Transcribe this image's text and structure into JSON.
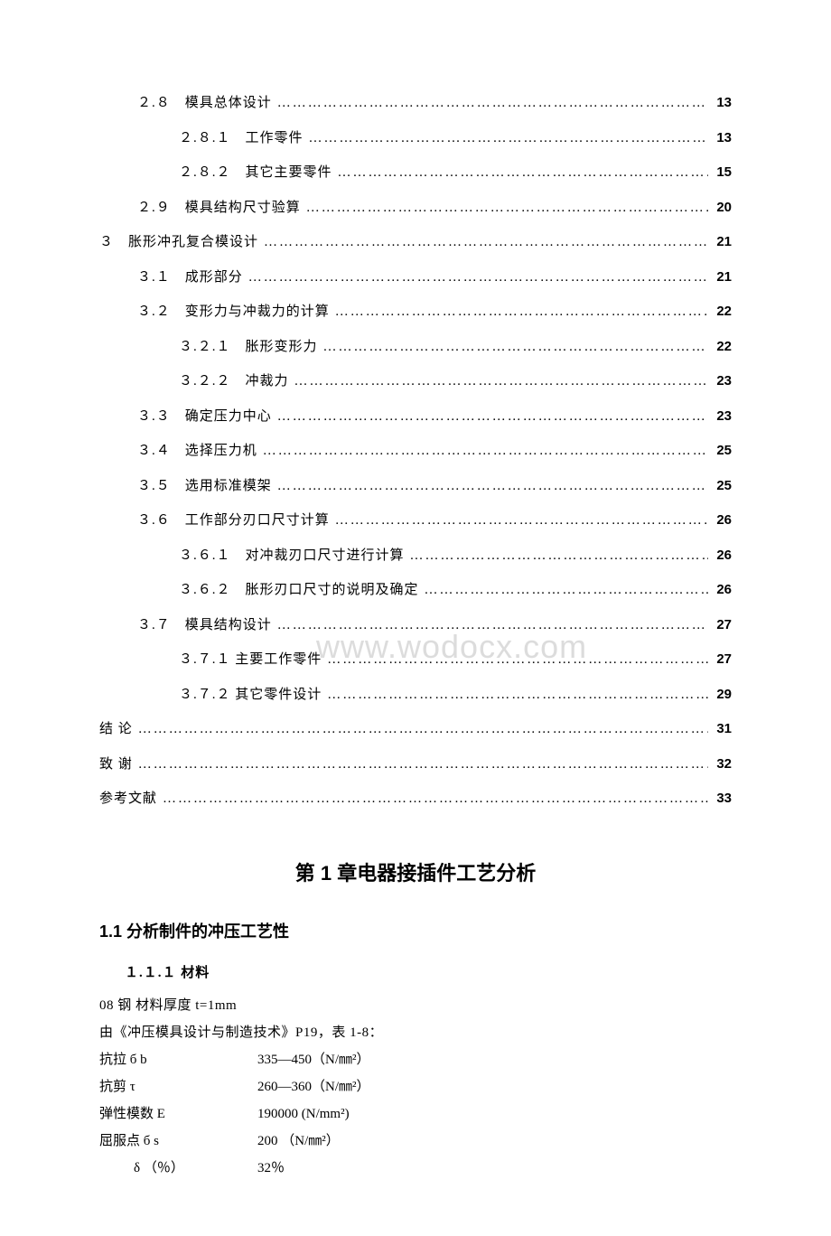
{
  "watermark": "www.wodocx.com",
  "toc": [
    {
      "indent": 1,
      "label": "２.８　模具总体设计",
      "page": "13"
    },
    {
      "indent": 2,
      "label": "２.８.１　工作零件",
      "page": "13"
    },
    {
      "indent": 2,
      "label": "２.８.２　其它主要零件",
      "page": "15"
    },
    {
      "indent": 1,
      "label": "２.９　模具结构尺寸验算",
      "page": "20"
    },
    {
      "indent": 0,
      "label": "３　胀形冲孔复合模设计",
      "page": "21"
    },
    {
      "indent": 1,
      "label": "３.１　成形部分",
      "page": "21"
    },
    {
      "indent": 1,
      "label": "３.２　变形力与冲裁力的计算",
      "page": "22"
    },
    {
      "indent": 2,
      "label": "３.２.１　胀形变形力",
      "page": "22"
    },
    {
      "indent": 2,
      "label": "３.２.２　冲裁力",
      "page": "23"
    },
    {
      "indent": 1,
      "label": "３.３　确定压力中心",
      "page": "23"
    },
    {
      "indent": 1,
      "label": "３.４　选择压力机",
      "page": "25"
    },
    {
      "indent": 1,
      "label": "３.５　选用标准模架",
      "page": "25"
    },
    {
      "indent": 1,
      "label": "３.６　工作部分刃口尺寸计算",
      "page": "26"
    },
    {
      "indent": 2,
      "label": "３.６.１　对冲裁刃口尺寸进行计算",
      "page": "26"
    },
    {
      "indent": 2,
      "label": "３.６.２　胀形刃口尺寸的说明及确定",
      "page": "26"
    },
    {
      "indent": 1,
      "label": "３.７　模具结构设计",
      "page": "27"
    },
    {
      "indent": 2,
      "label": "３.７.１ 主要工作零件",
      "page": "27"
    },
    {
      "indent": 2,
      "label": "３.７.２ 其它零件设计",
      "page": "29"
    },
    {
      "indent": 0,
      "label": "结  论",
      "page": "31"
    },
    {
      "indent": 0,
      "label": "致  谢",
      "page": "32"
    },
    {
      "indent": 0,
      "label": "参考文献",
      "page": "33"
    }
  ],
  "chapterTitle": "第 1 章电器接插件工艺分析",
  "sectionTitle": "1.1  分析制件的冲压工艺性",
  "subsectionTitle": "１.１.１ 材料",
  "materialLine": "08 钢   材料厚度  t=1mm",
  "refLine": "由《冲压模具设计与制造技术》P19，表 1-8：",
  "props": [
    {
      "label": "抗拉 б b",
      "value": "335—450（N/㎜²）"
    },
    {
      "label": "抗剪 τ",
      "value": "260—360（N/㎜²）"
    },
    {
      "label": "弹性模数  E",
      "value": "190000 (N/mm²)"
    },
    {
      "label": "屈服点 б s",
      "value": "200  （N/㎜²）"
    }
  ],
  "deltaLabel": "δ （％）",
  "deltaValue": "32％"
}
